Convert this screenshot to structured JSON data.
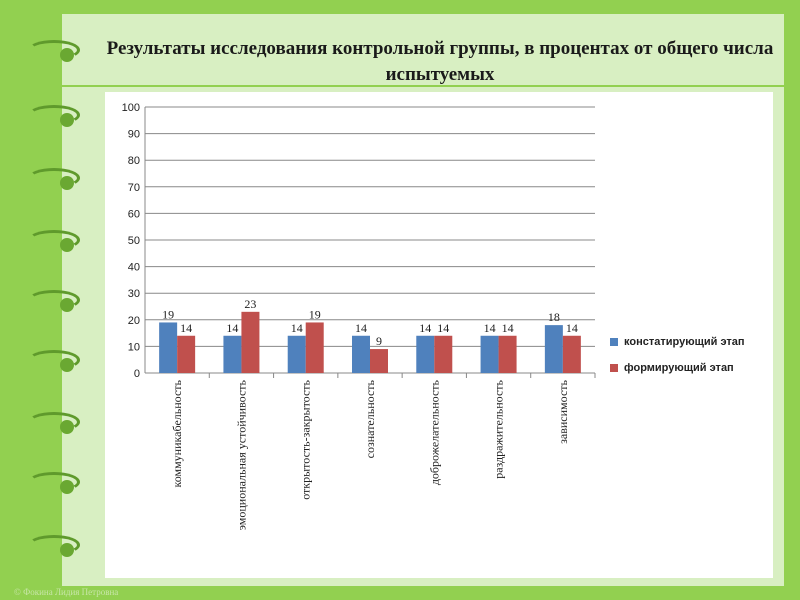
{
  "title": "Результаты исследования контрольной группы, в процентах от общего числа испытуемых",
  "footer": "© Фокина Лидия Петровна",
  "chart_data": {
    "type": "bar",
    "title": "",
    "categories": [
      "коммуникабельность",
      "эмоциональная устойчивость",
      "открытость-закрытость",
      "сознательность",
      "доброжелательность",
      "раздражительность",
      "зависимость"
    ],
    "series": [
      {
        "name": "констатирующий этап",
        "color": "#4f81bd",
        "values": [
          19,
          14,
          14,
          14,
          14,
          14,
          18
        ]
      },
      {
        "name": "формирующий этап",
        "color": "#c0504d",
        "values": [
          14,
          23,
          19,
          9,
          14,
          14,
          14
        ]
      }
    ],
    "ylim": [
      0,
      100
    ],
    "yticks": [
      0,
      10,
      20,
      30,
      40,
      50,
      60,
      70,
      80,
      90,
      100
    ],
    "grid": true,
    "legend": "right"
  }
}
